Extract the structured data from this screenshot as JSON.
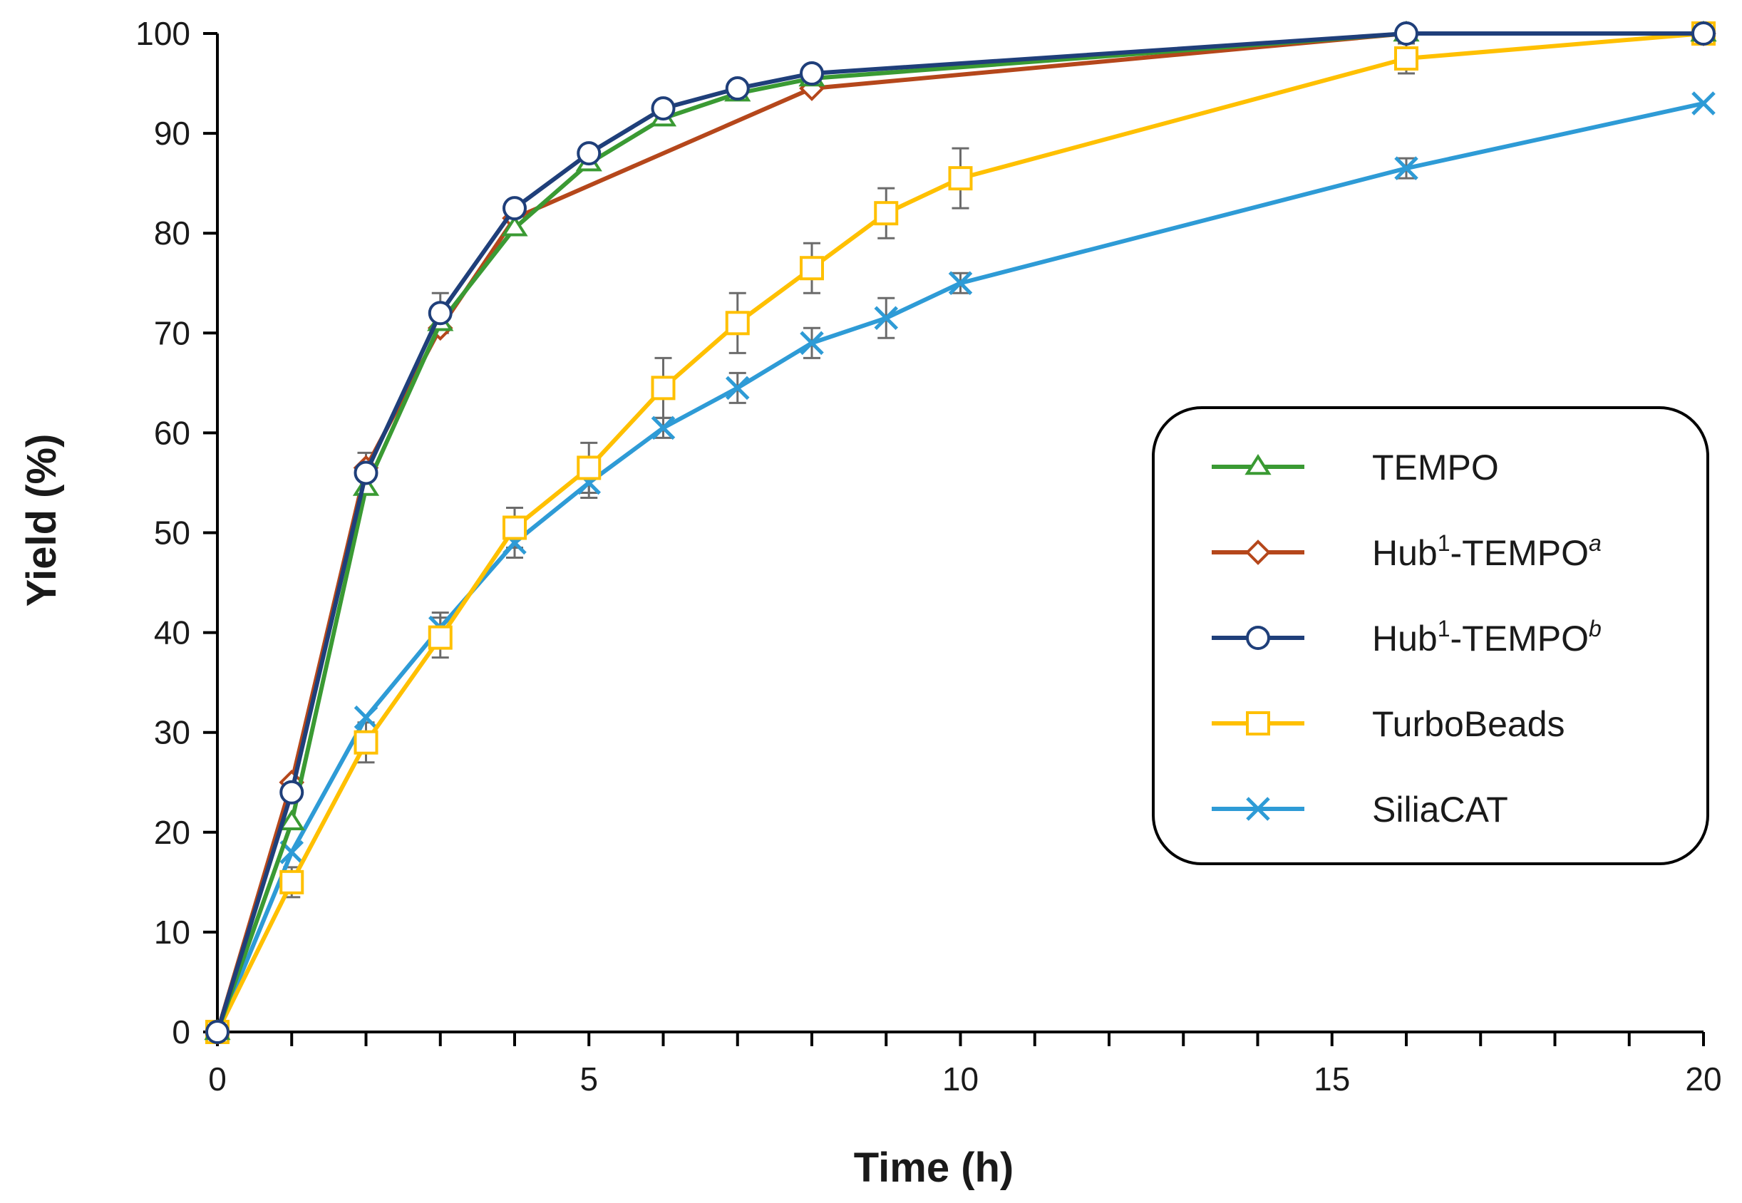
{
  "chart_data": {
    "type": "line",
    "title": "",
    "xlabel": "Time (h)",
    "ylabel": "Yield (%)",
    "xlim": [
      0,
      20
    ],
    "ylim": [
      0,
      100
    ],
    "x_ticks": [
      "0",
      "5",
      "10",
      "15",
      "20"
    ],
    "y_ticks": [
      "0",
      "10",
      "20",
      "30",
      "40",
      "50",
      "60",
      "70",
      "80",
      "90",
      "100"
    ],
    "grid": false,
    "legend_position": "right",
    "series": [
      {
        "name": "TEMPO",
        "legend": {
          "base": "TEMPO",
          "sup": "",
          "rest": "",
          "sup2": ""
        },
        "color": "#3a9a33",
        "marker": "triangle",
        "x": [
          0,
          1,
          2,
          3,
          4,
          5,
          6,
          7,
          8,
          16,
          20
        ],
        "y": [
          0,
          21,
          54.5,
          71,
          80.5,
          87,
          91.5,
          94,
          95.5,
          100,
          100
        ],
        "err": [
          0,
          0,
          0,
          0,
          0,
          0,
          0,
          0,
          0,
          0,
          0
        ]
      },
      {
        "name": "Hub1-TEMPOa",
        "legend": {
          "base": "Hub",
          "sup": "1",
          "rest": "-TEMPO",
          "sup2": "a"
        },
        "color": "#b5471b",
        "marker": "diamond",
        "x": [
          0,
          1,
          2,
          3,
          4,
          8,
          16,
          20
        ],
        "y": [
          0,
          25,
          56.5,
          70.5,
          81.5,
          94.5,
          100,
          100
        ],
        "err": [
          0,
          0,
          0,
          0,
          0,
          0,
          0,
          0
        ]
      },
      {
        "name": "Hub1-TEMPOb",
        "legend": {
          "base": "Hub",
          "sup": "1",
          "rest": "-TEMPO",
          "sup2": "b"
        },
        "color": "#1f3f7a",
        "marker": "circle",
        "x": [
          0,
          1,
          2,
          3,
          4,
          5,
          6,
          7,
          8,
          16,
          20
        ],
        "y": [
          0,
          24,
          56,
          72,
          82.5,
          88,
          92.5,
          94.5,
          96,
          100,
          100
        ],
        "err": [
          0,
          0,
          2,
          2,
          0,
          0,
          0,
          0,
          0,
          0,
          0
        ]
      },
      {
        "name": "TurboBeads",
        "legend": {
          "base": "TurboBeads",
          "sup": "",
          "rest": "",
          "sup2": ""
        },
        "color": "#ffc000",
        "marker": "square",
        "x": [
          0,
          1,
          2,
          3,
          4,
          5,
          6,
          7,
          8,
          9,
          10,
          16,
          20
        ],
        "y": [
          0,
          15,
          29,
          39.5,
          50.5,
          56.5,
          64.5,
          71,
          76.5,
          82,
          85.5,
          97.5,
          100
        ],
        "err": [
          0,
          1.5,
          2,
          2,
          2,
          2.5,
          3,
          3,
          2.5,
          2.5,
          3,
          1.5,
          0
        ]
      },
      {
        "name": "SiliaCAT",
        "legend": {
          "base": "SiliaCAT",
          "sup": "",
          "rest": "",
          "sup2": ""
        },
        "color": "#2e9bd6",
        "marker": "x",
        "x": [
          0,
          1,
          2,
          3,
          4,
          5,
          6,
          7,
          8,
          9,
          10,
          16,
          20
        ],
        "y": [
          0,
          18,
          31.5,
          40.5,
          49,
          55,
          60.5,
          64.5,
          69,
          71.5,
          75,
          86.5,
          93
        ],
        "err": [
          0,
          0,
          0,
          1.5,
          1.5,
          1.5,
          1,
          1.5,
          1.5,
          2,
          1,
          1,
          0
        ]
      }
    ]
  }
}
